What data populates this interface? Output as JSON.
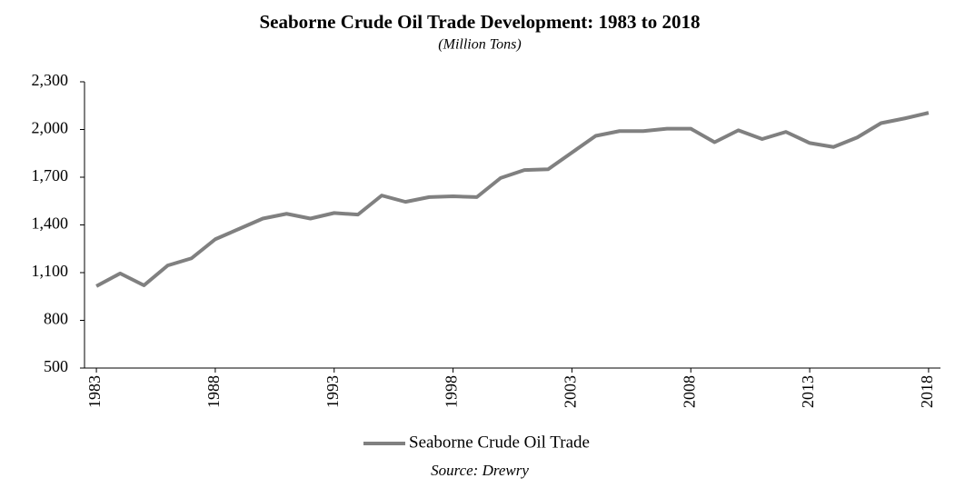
{
  "chart_data": {
    "type": "line",
    "title": "Seaborne Crude Oil Trade Development: 1983 to 2018",
    "subtitle": "(Million Tons)",
    "source": "Source: Drewry",
    "x": [
      1983,
      1984,
      1985,
      1986,
      1987,
      1988,
      1989,
      1990,
      1991,
      1992,
      1993,
      1994,
      1995,
      1996,
      1997,
      1998,
      1999,
      2000,
      2001,
      2002,
      2003,
      2004,
      2005,
      2006,
      2007,
      2008,
      2009,
      2010,
      2011,
      2012,
      2013,
      2014,
      2015,
      2016,
      2017,
      2018
    ],
    "series": [
      {
        "name": "Seaborne Crude Oil Trade",
        "color": "#808080",
        "values": [
          1015,
          1095,
          1020,
          1145,
          1190,
          1310,
          1375,
          1440,
          1470,
          1440,
          1475,
          1465,
          1585,
          1545,
          1575,
          1580,
          1575,
          1695,
          1745,
          1750,
          1855,
          1960,
          1990,
          1990,
          2005,
          2005,
          1920,
          1995,
          1940,
          1985,
          1915,
          1890,
          1950,
          2040,
          2070,
          2105
        ]
      }
    ],
    "xlim": [
      1982.5,
      2018.5
    ],
    "xticks": [
      1983,
      1988,
      1993,
      1998,
      2003,
      2008,
      2013,
      2018
    ],
    "ylim": [
      500,
      2300
    ],
    "yticks": [
      500,
      800,
      {
        "value": 1100,
        "label": "1,100"
      },
      {
        "value": 1400,
        "label": "1,400"
      },
      {
        "value": 1700,
        "label": "1,700"
      },
      {
        "value": 2000,
        "label": "2,000"
      },
      {
        "value": 2300,
        "label": "2,300"
      }
    ],
    "grid": false,
    "legend": "bottom"
  }
}
